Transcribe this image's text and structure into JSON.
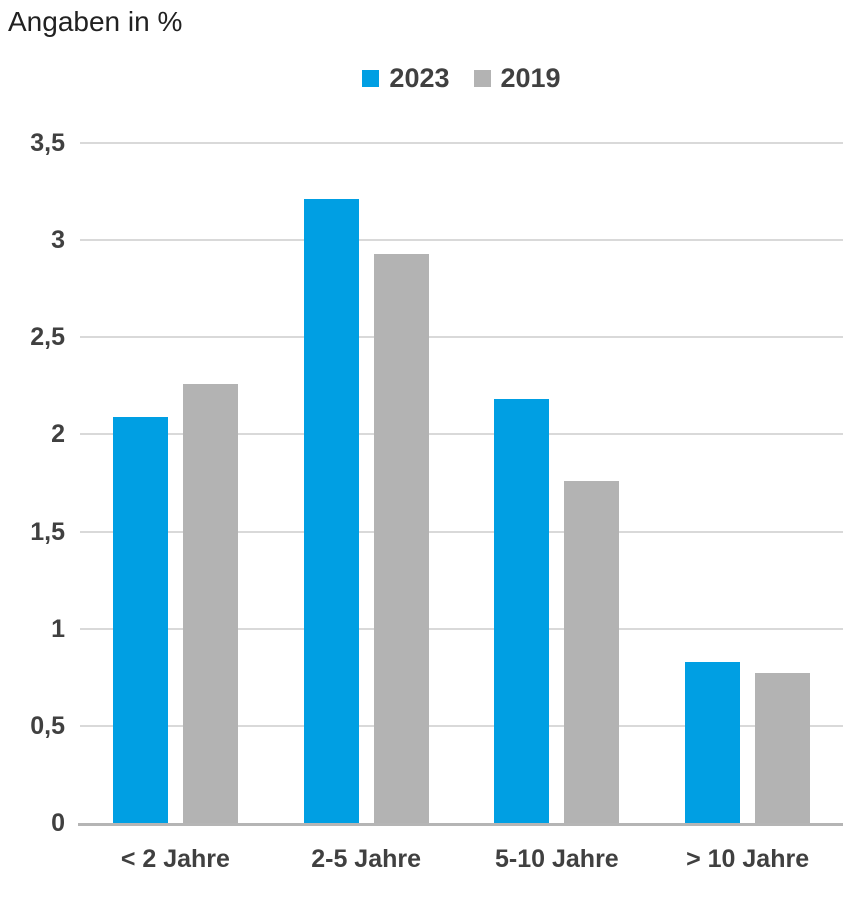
{
  "page": {
    "background": "#ffffff"
  },
  "chart_data": {
    "type": "bar",
    "title": "Angaben in %",
    "categories": [
      "< 2 Jahre",
      "2-5 Jahre",
      "5-10 Jahre",
      "> 10 Jahre"
    ],
    "series": [
      {
        "name": "2023",
        "color": "#009FE3",
        "values": [
          2.09,
          3.21,
          2.18,
          0.83
        ]
      },
      {
        "name": "2019",
        "color": "#B3B3B3",
        "values": [
          2.26,
          2.93,
          1.76,
          0.77
        ]
      }
    ],
    "xlabel": "",
    "ylabel": "Angaben in %",
    "ylim": [
      0,
      3.5
    ],
    "yticks": [
      0,
      0.5,
      1,
      1.5,
      2,
      2.5,
      3,
      3.5
    ],
    "ytick_labels": [
      "0",
      "0,5",
      "1",
      "1,5",
      "2",
      "2,5",
      "3",
      "3,5"
    ],
    "grid": true,
    "legend_position": "top-center",
    "decimal_separator": ","
  },
  "colors": {
    "bar_2023": "#009FE3",
    "bar_2019": "#B3B3B3",
    "grid_line": "#D9D9D9",
    "axis_line": "#B5B5B5",
    "tick_label": "#404040",
    "category_label": "#404040",
    "legend_label": "#404040",
    "title_text": "#212121"
  }
}
